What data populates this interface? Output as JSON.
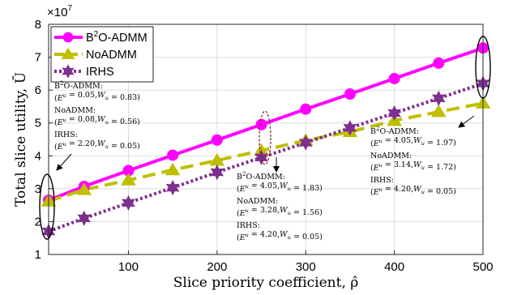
{
  "chart_data": {
    "type": "line",
    "x": [
      10,
      50,
      100,
      150,
      200,
      250,
      300,
      350,
      400,
      450,
      500
    ],
    "xlim": [
      10,
      500
    ],
    "ylim": [
      1,
      8
    ],
    "xticks": [
      100,
      200,
      300,
      400,
      500
    ],
    "yticks": [
      1,
      2,
      3,
      4,
      5,
      6,
      7,
      8
    ],
    "xlabel": "Slice priority coefficient, ρ̂",
    "ylabel": "Total slice utility, Ū",
    "y_multiplier": "×10",
    "y_exponent": "7",
    "grid": true,
    "legend_position": "top-left",
    "series": [
      {
        "name": "B²O-ADMM",
        "color": "#ff00ff",
        "style": "solid",
        "marker": "circle",
        "values": [
          2.65,
          3.07,
          3.55,
          4.02,
          4.48,
          4.95,
          5.42,
          5.88,
          6.35,
          6.82,
          7.28
        ]
      },
      {
        "name": "NoADMM",
        "color": "#bfbf00",
        "style": "dashed",
        "marker": "triangle",
        "values": [
          2.62,
          2.97,
          3.26,
          3.57,
          3.86,
          4.16,
          4.47,
          4.73,
          5.07,
          5.34,
          5.6
        ]
      },
      {
        "name": "IRHS",
        "color": "#7e2f8e",
        "style": "dotted",
        "marker": "hexagram",
        "values": [
          1.7,
          2.1,
          2.57,
          3.03,
          3.5,
          3.95,
          4.4,
          4.85,
          5.3,
          5.75,
          6.2
        ]
      }
    ],
    "annotations": [
      {
        "name": "left",
        "lines": [
          {
            "text": "B²O-ADMM:"
          },
          {
            "text": "(E^u = 0.05, W_u = 0.83)",
            "e": "0.05",
            "w": "0.83"
          },
          {
            "text": "NoADMM:"
          },
          {
            "text": "(E^u = 0.08, W_u = 0.56)",
            "e": "0.08",
            "w": "0.56"
          },
          {
            "text": "IRHS:"
          },
          {
            "text": "(E^u = 2.20, W_u = 0.05)",
            "e": "2.20",
            "w": "0.05"
          }
        ]
      },
      {
        "name": "middle",
        "lines": [
          {
            "text": "B²O-ADMM:"
          },
          {
            "text": "(E^u = 4.05, W_u = 1.83)",
            "e": "4.05",
            "w": "1.83"
          },
          {
            "text": "NoADMM:"
          },
          {
            "text": "(E^u = 3.28, W_u = 1.56)",
            "e": "3.28",
            "w": "1.56"
          },
          {
            "text": "IRHS:"
          },
          {
            "text": "(E^u = 4.20, W_u = 0.05)",
            "e": "4.20",
            "w": "0.05"
          }
        ]
      },
      {
        "name": "right",
        "lines": [
          {
            "text": "B²O-ADMM:"
          },
          {
            "text": "(E^u = 4.05, W_u = 1.97)",
            "e": "4.05",
            "w": "1.97"
          },
          {
            "text": "NoADMM:"
          },
          {
            "text": "(E^u = 3.14, W_u = 1.72)",
            "e": "3.14",
            "w": "1.72"
          },
          {
            "text": "IRHS:"
          },
          {
            "text": "(E^u = 4.20, W_u = 0.05)",
            "e": "4.20",
            "w": "0.05"
          }
        ]
      }
    ]
  }
}
